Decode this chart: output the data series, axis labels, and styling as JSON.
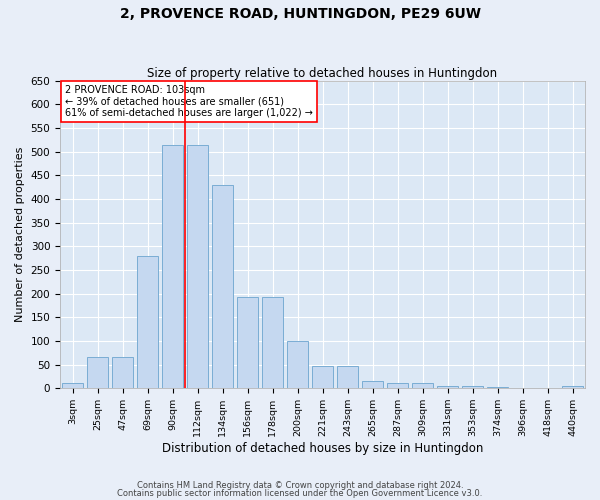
{
  "title": "2, PROVENCE ROAD, HUNTINGDON, PE29 6UW",
  "subtitle": "Size of property relative to detached houses in Huntingdon",
  "xlabel": "Distribution of detached houses by size in Huntingdon",
  "ylabel": "Number of detached properties",
  "bar_color": "#c5d8f0",
  "bar_edge_color": "#7aadd4",
  "background_color": "#dce8f5",
  "grid_color": "#ffffff",
  "fig_background": "#e8eef8",
  "categories": [
    "3sqm",
    "25sqm",
    "47sqm",
    "69sqm",
    "90sqm",
    "112sqm",
    "134sqm",
    "156sqm",
    "178sqm",
    "200sqm",
    "221sqm",
    "243sqm",
    "265sqm",
    "287sqm",
    "309sqm",
    "331sqm",
    "353sqm",
    "374sqm",
    "396sqm",
    "418sqm",
    "440sqm"
  ],
  "values": [
    10,
    65,
    65,
    280,
    515,
    515,
    430,
    192,
    192,
    100,
    47,
    47,
    15,
    10,
    10,
    5,
    5,
    3,
    0,
    0,
    5
  ],
  "ylim": [
    0,
    650
  ],
  "yticks": [
    0,
    50,
    100,
    150,
    200,
    250,
    300,
    350,
    400,
    450,
    500,
    550,
    600,
    650
  ],
  "redline_x": 4.5,
  "annotation_title": "2 PROVENCE ROAD: 103sqm",
  "annotation_line1": "← 39% of detached houses are smaller (651)",
  "annotation_line2": "61% of semi-detached houses are larger (1,022) →",
  "footnote1": "Contains HM Land Registry data © Crown copyright and database right 2024.",
  "footnote2": "Contains public sector information licensed under the Open Government Licence v3.0."
}
